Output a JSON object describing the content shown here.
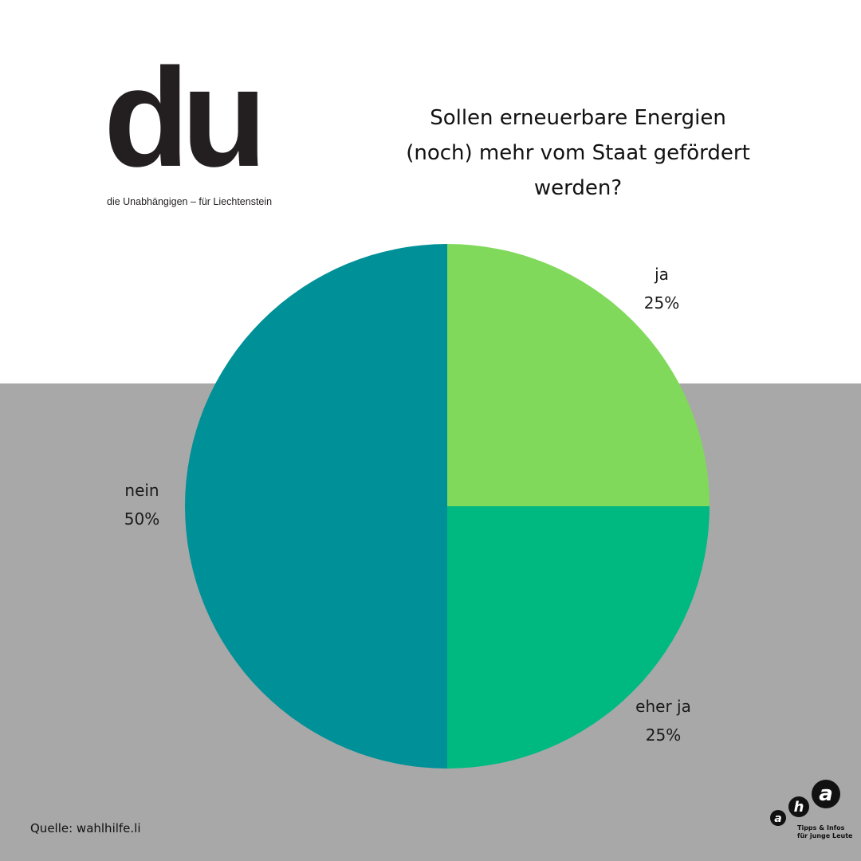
{
  "logo": {
    "text": "du",
    "tagline": "die Unabhängigen – für Liechtenstein"
  },
  "chart_data": {
    "type": "pie",
    "title": "Sollen erneuerbare Energien (noch) mehr vom Staat gefördert werden?",
    "title_lines": [
      "Sollen erneuerbare Energien",
      "(noch) mehr vom Staat gefördert",
      "werden?"
    ],
    "slices": [
      {
        "label": "ja",
        "value": 25,
        "display": "25%",
        "color": "#80d95a"
      },
      {
        "label": "eher ja",
        "value": 25,
        "display": "25%",
        "color": "#00b981"
      },
      {
        "label": "nein",
        "value": 50,
        "display": "50%",
        "color": "#009098"
      }
    ],
    "start_angle": "12 o'clock",
    "direction": "clockwise",
    "legend": "none"
  },
  "source": "Quelle: wahlhilfe.li",
  "partner_logo": {
    "letters": [
      "a",
      "h",
      "a"
    ],
    "tagline_lines": [
      "Tipps & Infos",
      "für junge Leute"
    ]
  },
  "colors": {
    "top_background": "#ffffff",
    "bottom_background": "#a8a8a8"
  }
}
